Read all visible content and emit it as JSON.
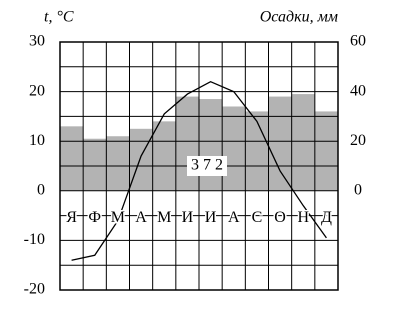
{
  "chart_data": {
    "type": "climatogram",
    "y_label": "t, °C",
    "y2_label": "Осадки, мм",
    "annotation": "3 7 2",
    "categories": [
      "Я",
      "Ф",
      "М",
      "А",
      "М",
      "И",
      "И",
      "А",
      "С",
      "О",
      "Н",
      "Д"
    ],
    "series": [
      {
        "type": "bar",
        "axis": "y2",
        "color": "#b3b3b3",
        "values": [
          26,
          21,
          22,
          25,
          28,
          38,
          37,
          34,
          32,
          38,
          39,
          32
        ]
      },
      {
        "type": "line",
        "color": "#000000",
        "values": [
          -14,
          -13,
          -6,
          7,
          15.5,
          19.5,
          22,
          20,
          14,
          4,
          -3,
          -9.5
        ]
      }
    ],
    "ylim": [
      -20,
      30
    ],
    "yticks": [
      -20,
      -10,
      0,
      10,
      20,
      30
    ],
    "y2lim": [
      -40,
      60
    ],
    "y2ticks": [
      0,
      20,
      40,
      60
    ],
    "grid": true
  }
}
